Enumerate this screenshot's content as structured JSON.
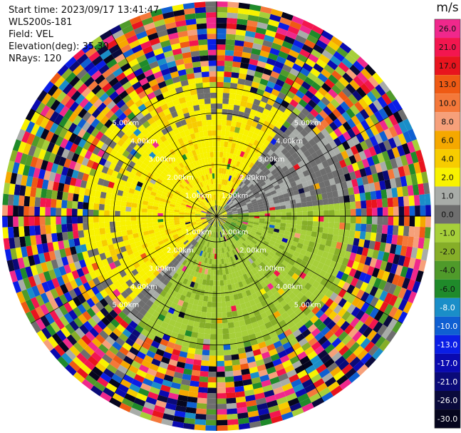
{
  "header": {
    "start_time": "Start time: 2023/09/17 13:41:47",
    "instrument": "WLS200s-181",
    "field": "Field: VEL",
    "elevation": "Elevation(deg): 35.30",
    "nrays": "NRays: 120"
  },
  "colorbar": {
    "unit": "m/s",
    "levels": [
      {
        "label": "26.0",
        "color": "#f0288c"
      },
      {
        "label": "21.0",
        "color": "#f3164f"
      },
      {
        "label": "17.0",
        "color": "#e8141e"
      },
      {
        "label": "13.0",
        "color": "#ef5a14"
      },
      {
        "label": "10.0",
        "color": "#f4783a"
      },
      {
        "label": "8.0",
        "color": "#f6a07a"
      },
      {
        "label": "6.0",
        "color": "#f5a800"
      },
      {
        "label": "4.0",
        "color": "#f7cc00"
      },
      {
        "label": "2.0",
        "color": "#f8f200"
      },
      {
        "label": "1.0",
        "color": "#a8aca8"
      },
      {
        "label": "0.0",
        "color": "#6e6e6e"
      },
      {
        "label": "-1.0",
        "color": "#a6cf3a"
      },
      {
        "label": "-2.0",
        "color": "#86ae28"
      },
      {
        "label": "-4.0",
        "color": "#4f9a2a"
      },
      {
        "label": "-6.0",
        "color": "#1f8a2a"
      },
      {
        "label": "-8.0",
        "color": "#1a8ec8"
      },
      {
        "label": "-10.0",
        "color": "#0f5fd2"
      },
      {
        "label": "-13.0",
        "color": "#0a1ee6"
      },
      {
        "label": "-17.0",
        "color": "#0a0ab0"
      },
      {
        "label": "-21.0",
        "color": "#0a0a78"
      },
      {
        "label": "-26.0",
        "color": "#0a0a3c"
      },
      {
        "label": "-30.0",
        "color": "#06061e"
      }
    ]
  },
  "range_labels": [
    "1.00km",
    "2.00km",
    "3.00km",
    "4.00km",
    "5.00km"
  ],
  "chart_data": {
    "type": "heatmap",
    "projection": "polar (PPI)",
    "field": "VEL",
    "units": "m/s",
    "elevation_deg": 35.3,
    "n_rays": 120,
    "range_rings_km": [
      1,
      2,
      3,
      4,
      5
    ],
    "max_range_km": 5,
    "regions": [
      {
        "description": "near field, east-southeast",
        "velocity_m_s": [
          -2.0,
          -1.0
        ]
      },
      {
        "description": "near field, northwest-west",
        "velocity_m_s": [
          2.0,
          4.0
        ]
      },
      {
        "description": "near field, northeast band",
        "velocity_m_s": [
          0.0,
          1.0
        ]
      },
      {
        "description": "beyond ~3.2 km",
        "velocity_m_s": "noise (-30.0 to 26.0)"
      }
    ]
  }
}
